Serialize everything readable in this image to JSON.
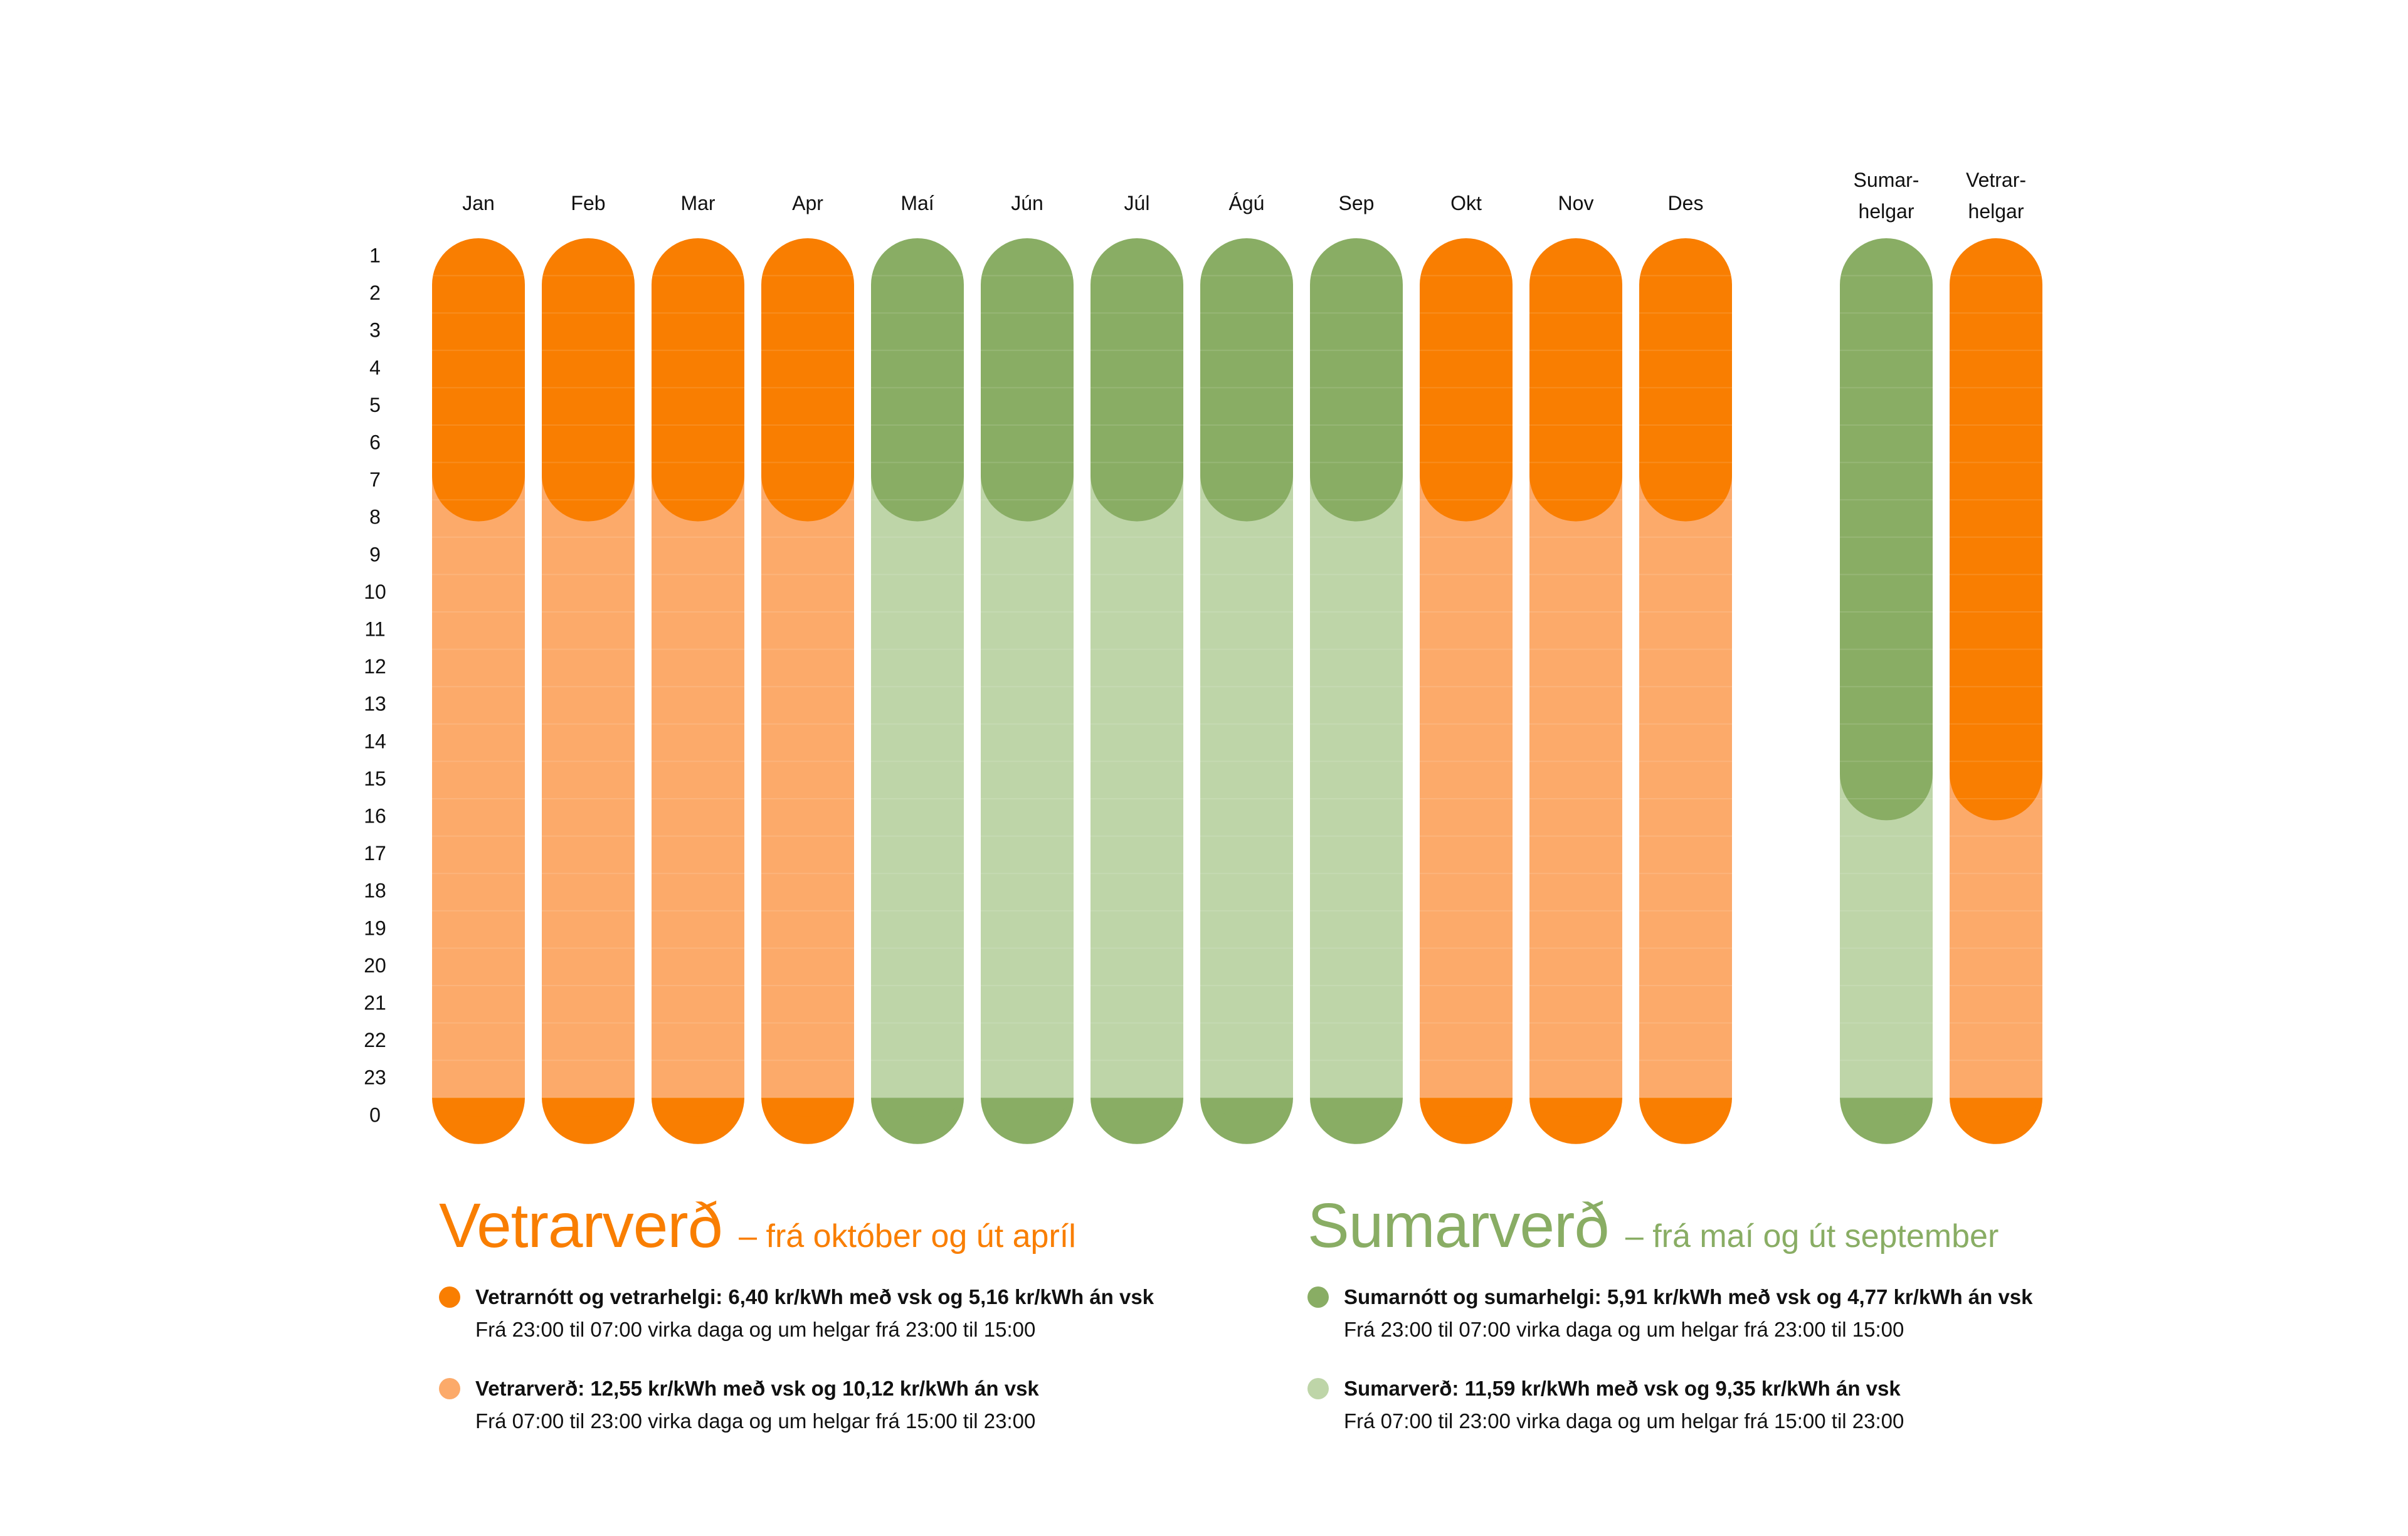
{
  "colors": {
    "winter_low": "#F97E01",
    "winter_high": "#FCAA6A",
    "summer_low": "#89AD64",
    "summer_high": "#BED5A8",
    "text": "#111111"
  },
  "chart_data": {
    "type": "heatmap",
    "title": "",
    "xlabel": "",
    "ylabel": "",
    "y_hours": [
      "1",
      "2",
      "3",
      "4",
      "5",
      "6",
      "7",
      "8",
      "9",
      "10",
      "11",
      "12",
      "13",
      "14",
      "15",
      "16",
      "17",
      "18",
      "19",
      "20",
      "21",
      "22",
      "23",
      "0"
    ],
    "columns": [
      {
        "label": [
          "Jan"
        ],
        "season": "winter",
        "low_start": 23,
        "low_end": 7
      },
      {
        "label": [
          "Feb"
        ],
        "season": "winter",
        "low_start": 23,
        "low_end": 7
      },
      {
        "label": [
          "Mar"
        ],
        "season": "winter",
        "low_start": 23,
        "low_end": 7
      },
      {
        "label": [
          "Apr"
        ],
        "season": "winter",
        "low_start": 23,
        "low_end": 7
      },
      {
        "label": [
          "Maí"
        ],
        "season": "summer",
        "low_start": 23,
        "low_end": 7
      },
      {
        "label": [
          "Jún"
        ],
        "season": "summer",
        "low_start": 23,
        "low_end": 7
      },
      {
        "label": [
          "Júl"
        ],
        "season": "summer",
        "low_start": 23,
        "low_end": 7
      },
      {
        "label": [
          "Ágú"
        ],
        "season": "summer",
        "low_start": 23,
        "low_end": 7
      },
      {
        "label": [
          "Sep"
        ],
        "season": "summer",
        "low_start": 23,
        "low_end": 7
      },
      {
        "label": [
          "Okt"
        ],
        "season": "winter",
        "low_start": 23,
        "low_end": 7
      },
      {
        "label": [
          "Nov"
        ],
        "season": "winter",
        "low_start": 23,
        "low_end": 7
      },
      {
        "label": [
          "Des"
        ],
        "season": "winter",
        "low_start": 23,
        "low_end": 7
      },
      {
        "label": [
          "Sumar-",
          "helgar"
        ],
        "season": "summer",
        "low_start": 23,
        "low_end": 15
      },
      {
        "label": [
          "Vetrar-",
          "helgar"
        ],
        "season": "winter",
        "low_start": 23,
        "low_end": 15
      }
    ]
  },
  "legend": {
    "winter": {
      "title": "Vetrarverð",
      "subtitle": "– frá október og út apríl",
      "items": [
        {
          "line1": "Vetrarnótt og vetrarhelgi: 6,40 kr/kWh með vsk og 5,16 kr/kWh án vsk",
          "line2": "Frá 23:00 til 07:00 virka daga og um helgar frá 23:00 til 15:00"
        },
        {
          "line1": "Vetrarverð: 12,55 kr/kWh með vsk og 10,12 kr/kWh án vsk",
          "line2": "Frá 07:00 til 23:00 virka daga og um helgar frá 15:00 til 23:00"
        }
      ]
    },
    "summer": {
      "title": "Sumarverð",
      "subtitle": "– frá maí og út september",
      "items": [
        {
          "line1": "Sumarnótt og sumarhelgi: 5,91 kr/kWh með vsk og 4,77 kr/kWh án vsk",
          "line2": "Frá 23:00 til 07:00 virka daga og um helgar frá 23:00 til 15:00"
        },
        {
          "line1": "Sumarverð: 11,59 kr/kWh með vsk og 9,35 kr/kWh án vsk",
          "line2": "Frá 07:00 til 23:00 virka daga og um helgar frá 15:00 til 23:00"
        }
      ]
    }
  }
}
